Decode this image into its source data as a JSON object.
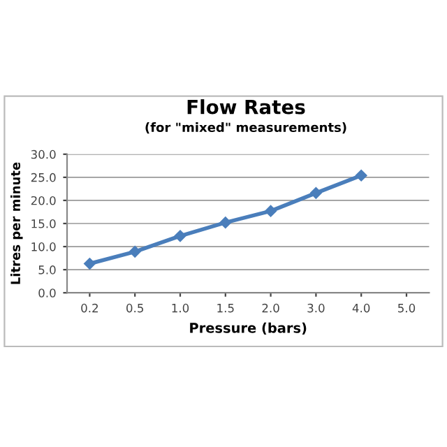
{
  "chart_data": {
    "type": "line",
    "title": "Flow Rates",
    "subtitle": "(for \"mixed\" measurements)",
    "xlabel": "Pressure (bars)",
    "ylabel": "Litres per minute",
    "categories": [
      "0.2",
      "0.5",
      "1.0",
      "1.5",
      "2.0",
      "3.0",
      "4.0",
      "5.0"
    ],
    "series": [
      {
        "color": "#4a7ebb",
        "values": [
          6.3,
          8.9,
          12.3,
          15.2,
          17.7,
          21.6,
          25.4,
          null
        ]
      }
    ],
    "ylim": [
      0,
      30
    ],
    "yticks": [
      {
        "value": 0,
        "label": "0.0"
      },
      {
        "value": 5,
        "label": "5.0"
      },
      {
        "value": 10,
        "label": "10.0"
      },
      {
        "value": 15,
        "label": "15.0"
      },
      {
        "value": 20,
        "label": "20.0"
      },
      {
        "value": 25,
        "label": "25.0"
      },
      {
        "value": 30,
        "label": "30.0"
      }
    ],
    "grid": "y",
    "marker": "diamond",
    "line_style": "solid"
  }
}
